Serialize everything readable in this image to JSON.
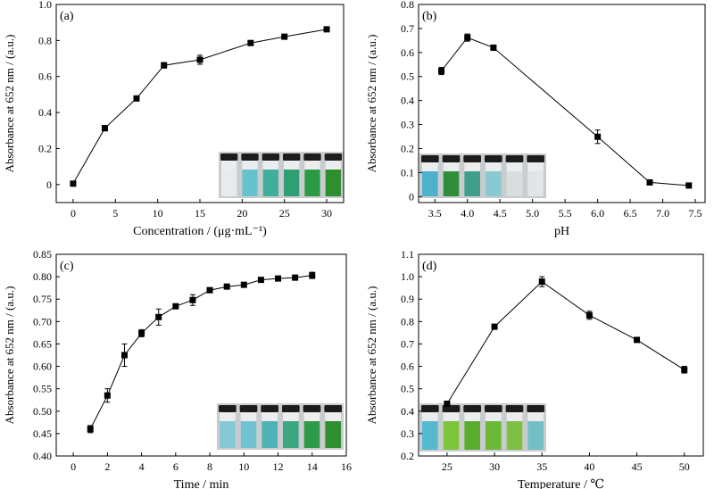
{
  "chart_data": [
    {
      "type": "line",
      "panel_label": "(a)",
      "xlabel": "Concentration / (μg·mL⁻¹)",
      "ylabel": "Absorbance at 652 nm / (a.u.)",
      "xlim": [
        -2,
        32
      ],
      "ylim": [
        -0.1,
        1.0
      ],
      "xticks": [
        0,
        5,
        10,
        15,
        20,
        25,
        30
      ],
      "yticks": [
        0,
        0.2,
        0.4,
        0.6,
        0.8,
        1.0
      ],
      "xtick_labels": [
        "0",
        "5",
        "10",
        "15",
        "20",
        "25",
        "30"
      ],
      "ytick_labels": [
        "0",
        "0.2",
        "0.4",
        "0.6",
        "0.8",
        "1.0"
      ],
      "x": [
        0,
        3.75,
        7.5,
        10.75,
        15,
        21,
        25,
        30
      ],
      "y": [
        0.005,
        0.313,
        0.478,
        0.662,
        0.693,
        0.786,
        0.821,
        0.862
      ],
      "err": [
        0,
        0.015,
        0.012,
        0.015,
        0.025,
        0.01,
        0.01,
        0.01
      ],
      "vial_colors": [
        "#e6ecec",
        "#66c2cd",
        "#3fae9a",
        "#2f9e72",
        "#2b9a46",
        "#2f8e2e"
      ]
    },
    {
      "type": "line",
      "panel_label": "(b)",
      "xlabel": "pH",
      "ylabel": "Absorbance at 652 nm / (a.u.)",
      "xlim": [
        3.25,
        7.65
      ],
      "ylim": [
        -0.025,
        0.8
      ],
      "xticks": [
        3.5,
        4.0,
        4.5,
        5.0,
        5.5,
        6.0,
        6.5,
        7.0,
        7.5
      ],
      "yticks": [
        0,
        0.1,
        0.2,
        0.3,
        0.4,
        0.5,
        0.6,
        0.7,
        0.8
      ],
      "xtick_labels": [
        "3.5",
        "4.0",
        "4.5",
        "5.0",
        "5.5",
        "6.0",
        "6.5",
        "7.0",
        "7.5"
      ],
      "ytick_labels": [
        "0",
        "0.1",
        "0.2",
        "0.3",
        "0.4",
        "0.5",
        "0.6",
        "0.7",
        "0.8"
      ],
      "x": [
        3.6,
        4.0,
        4.4,
        6.0,
        6.8,
        7.4
      ],
      "y": [
        0.523,
        0.662,
        0.62,
        0.249,
        0.059,
        0.046
      ],
      "err": [
        0.015,
        0.015,
        0.01,
        0.028,
        0.005,
        0.005
      ],
      "vial_colors": [
        "#4db1cc",
        "#2f8e3a",
        "#3f9f8c",
        "#89c9d2",
        "#d9dde0",
        "#e2e5e6"
      ]
    },
    {
      "type": "line",
      "panel_label": "(c)",
      "xlabel": "Time / min",
      "ylabel": "Absorbance at 652 nm / (a.u.)",
      "xlim": [
        -1,
        16
      ],
      "ylim": [
        0.4,
        0.85
      ],
      "xticks": [
        0,
        2,
        4,
        6,
        8,
        10,
        12,
        14,
        16
      ],
      "yticks": [
        0.4,
        0.45,
        0.5,
        0.55,
        0.6,
        0.65,
        0.7,
        0.75,
        0.8,
        0.85
      ],
      "xtick_labels": [
        "0",
        "2",
        "4",
        "6",
        "8",
        "10",
        "12",
        "14",
        "16"
      ],
      "ytick_labels": [
        "0.40",
        "0.45",
        "0.50",
        "0.55",
        "0.60",
        "0.65",
        "0.70",
        "0.75",
        "0.80",
        "0.85"
      ],
      "x": [
        1,
        2,
        3,
        4,
        5,
        6,
        7,
        8,
        9,
        10,
        11,
        12,
        13,
        14
      ],
      "y": [
        0.46,
        0.535,
        0.625,
        0.674,
        0.71,
        0.734,
        0.748,
        0.77,
        0.778,
        0.782,
        0.793,
        0.796,
        0.798,
        0.803
      ],
      "err": [
        0.008,
        0.015,
        0.025,
        0.008,
        0.018,
        0.004,
        0.012,
        0.004,
        0.004,
        0.004,
        0.004,
        0.004,
        0.004,
        0.007
      ],
      "vial_colors": [
        "#86c8d6",
        "#72c2d2",
        "#4eb3b5",
        "#3aa780",
        "#2f9a48",
        "#2f8e2e"
      ]
    },
    {
      "type": "line",
      "panel_label": "(d)",
      "xlabel": "Temperature / ℃",
      "ylabel": "Absorbance at 652 nm / (a.u.)",
      "xlim": [
        22,
        52
      ],
      "ylim": [
        0.2,
        1.1
      ],
      "xticks": [
        25,
        30,
        35,
        40,
        45,
        50
      ],
      "yticks": [
        0.2,
        0.3,
        0.4,
        0.5,
        0.6,
        0.7,
        0.8,
        0.9,
        1.0,
        1.1
      ],
      "xtick_labels": [
        "25",
        "30",
        "35",
        "40",
        "45",
        "50"
      ],
      "ytick_labels": [
        "0.2",
        "0.3",
        "0.4",
        "0.5",
        "0.6",
        "0.7",
        "0.8",
        "0.9",
        "1.0",
        "1.1"
      ],
      "x": [
        25,
        30,
        35,
        40,
        45,
        50
      ],
      "y": [
        0.433,
        0.777,
        0.978,
        0.828,
        0.718,
        0.585
      ],
      "err": [
        0.012,
        0.006,
        0.022,
        0.018,
        0.01,
        0.015
      ],
      "vial_colors": [
        "#55b9d0",
        "#7dc53a",
        "#5aac2c",
        "#6bb936",
        "#7fc044",
        "#74bfc6"
      ]
    }
  ]
}
